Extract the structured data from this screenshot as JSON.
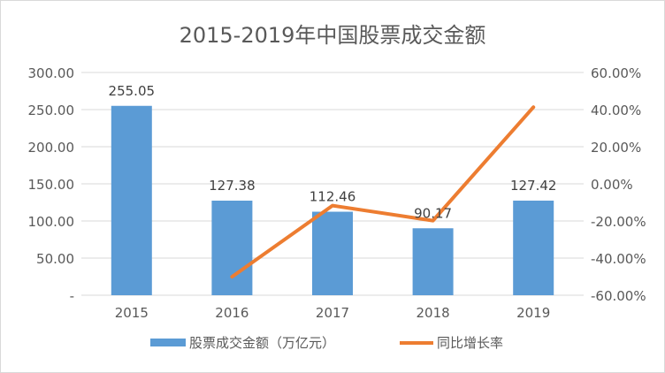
{
  "chart_data": {
    "type": "bar+line",
    "title": "2015-2019年中国股票成交金额",
    "categories": [
      "2015",
      "2016",
      "2017",
      "2018",
      "2019"
    ],
    "series": [
      {
        "name": "股票成交金额（万亿元）",
        "type": "bar",
        "axis": "left",
        "values": [
          255.05,
          127.38,
          112.46,
          90.17,
          127.42
        ],
        "labels": [
          "255.05",
          "127.38",
          "112.46",
          "90.17",
          "127.42"
        ],
        "color": "#5b9bd5"
      },
      {
        "name": "同比增长率",
        "type": "line",
        "axis": "right",
        "values": [
          null,
          -50.06,
          -11.71,
          -19.82,
          41.31
        ],
        "color": "#ed7d31"
      }
    ],
    "left_axis": {
      "ylim": [
        0,
        300
      ],
      "ticks": [
        "-",
        "50.00",
        "100.00",
        "150.00",
        "200.00",
        "250.00",
        "300.00"
      ]
    },
    "right_axis": {
      "ylim": [
        -60,
        60
      ],
      "unit": "%",
      "ticks": [
        "-60.00%",
        "-40.00%",
        "-20.00%",
        "0.00%",
        "20.00%",
        "40.00%",
        "60.00%"
      ]
    },
    "grid": true,
    "legend": "bottom"
  }
}
